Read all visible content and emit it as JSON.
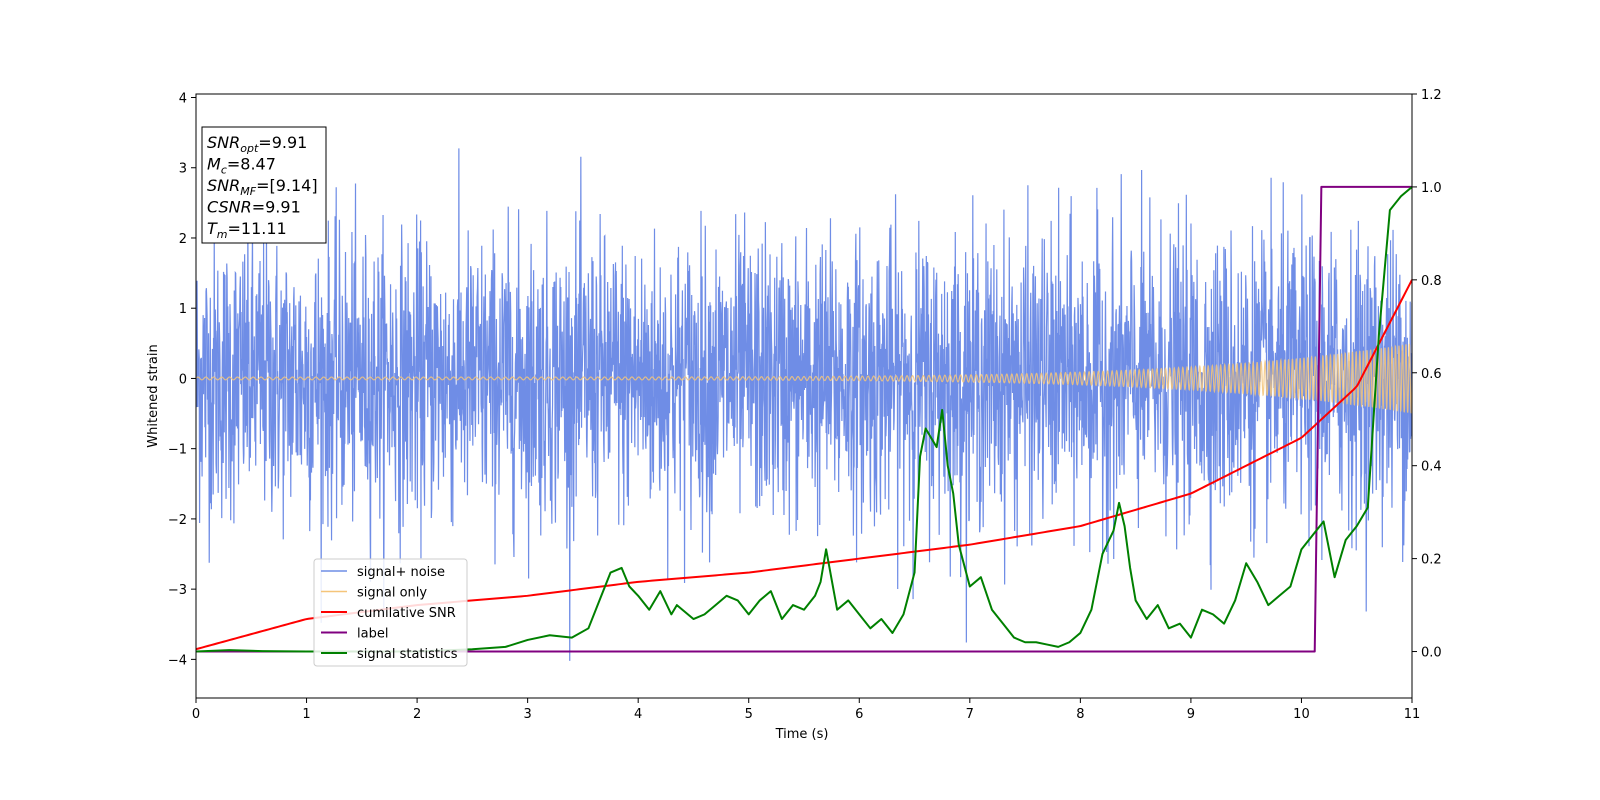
{
  "chart_data": {
    "type": "line",
    "xlabel": "Time (s)",
    "ylabel": "Whitened strain",
    "xlim": [
      0,
      11
    ],
    "ylim_left": [
      -4.55,
      4.05
    ],
    "ylim_right": [
      -0.1,
      1.2
    ],
    "x_ticks": [
      0,
      1,
      2,
      3,
      4,
      5,
      6,
      7,
      8,
      9,
      10,
      11
    ],
    "y_ticks_left": [
      4,
      3,
      2,
      1,
      0,
      -1,
      -2,
      -3,
      -4
    ],
    "y_ticks_left_labels": [
      "4",
      "3",
      "2",
      "1",
      "0",
      "−1",
      "−2",
      "−3",
      "−4"
    ],
    "y_ticks_right": [
      1.2,
      1.0,
      0.8,
      0.6,
      0.4,
      0.2,
      0.0
    ],
    "y_ticks_right_labels": [
      "1.2",
      "1.0",
      "0.8",
      "0.6",
      "0.4",
      "0.2",
      "0.0"
    ],
    "grid": false,
    "legend_position": "lower-left",
    "annotation": {
      "lines": [
        {
          "base": "SNR",
          "sub": "opt",
          "rest": "=9.91"
        },
        {
          "base": "M",
          "sub": "c",
          "rest": "=8.47"
        },
        {
          "base": "SNR",
          "sub": "MF",
          "rest": "=[9.14]"
        },
        {
          "base": "CSNR",
          "sub": "",
          "rest": "=9.91"
        },
        {
          "base": "T",
          "sub": "m",
          "rest": "=11.11"
        }
      ]
    },
    "series": [
      {
        "name": "signal+ noise",
        "color": "#6f8de6",
        "axis": "left",
        "kind": "noise_band",
        "approx_range": [
          -4.15,
          3.67
        ]
      },
      {
        "name": "signal only",
        "color": "#f5c57a",
        "axis": "left",
        "kind": "chirp",
        "amplitude_start": 0.02,
        "amplitude_end": 0.5
      },
      {
        "name": "cumilative SNR",
        "color": "#ff0000",
        "axis": "right",
        "x": [
          0,
          1,
          2,
          3,
          4,
          5,
          6,
          7,
          8,
          9,
          10,
          10.5,
          11
        ],
        "y": [
          0.005,
          0.07,
          0.1,
          0.12,
          0.15,
          0.17,
          0.2,
          0.23,
          0.27,
          0.34,
          0.46,
          0.57,
          0.8
        ]
      },
      {
        "name": "label",
        "color": "#800080",
        "axis": "right",
        "x": [
          0,
          10.12,
          10.18,
          11
        ],
        "y": [
          0.0,
          0.0,
          1.0,
          1.0
        ]
      },
      {
        "name": "signal statistics",
        "color": "#008000",
        "axis": "right",
        "x": [
          0,
          0.3,
          0.6,
          1,
          2,
          2.5,
          2.8,
          3.0,
          3.2,
          3.4,
          3.55,
          3.65,
          3.75,
          3.85,
          3.92,
          4.0,
          4.1,
          4.2,
          4.3,
          4.35,
          4.5,
          4.6,
          4.7,
          4.8,
          4.9,
          5.0,
          5.1,
          5.2,
          5.3,
          5.4,
          5.5,
          5.6,
          5.65,
          5.7,
          5.8,
          5.9,
          6.0,
          6.1,
          6.2,
          6.3,
          6.4,
          6.5,
          6.55,
          6.6,
          6.7,
          6.75,
          6.8,
          6.85,
          6.9,
          7.0,
          7.1,
          7.2,
          7.3,
          7.4,
          7.5,
          7.6,
          7.7,
          7.8,
          7.9,
          8.0,
          8.1,
          8.2,
          8.3,
          8.35,
          8.4,
          8.45,
          8.5,
          8.6,
          8.7,
          8.8,
          8.9,
          9.0,
          9.1,
          9.2,
          9.3,
          9.4,
          9.5,
          9.6,
          9.7,
          9.8,
          9.9,
          10.0,
          10.1,
          10.2,
          10.3,
          10.4,
          10.5,
          10.6,
          10.7,
          10.8,
          10.9,
          11.0
        ],
        "y": [
          0.0,
          0.003,
          0.001,
          0.0,
          0.0,
          0.005,
          0.01,
          0.025,
          0.035,
          0.03,
          0.05,
          0.11,
          0.17,
          0.18,
          0.14,
          0.12,
          0.09,
          0.13,
          0.08,
          0.1,
          0.07,
          0.08,
          0.1,
          0.12,
          0.11,
          0.08,
          0.11,
          0.13,
          0.07,
          0.1,
          0.09,
          0.12,
          0.15,
          0.22,
          0.09,
          0.11,
          0.08,
          0.05,
          0.07,
          0.04,
          0.08,
          0.17,
          0.42,
          0.48,
          0.44,
          0.52,
          0.4,
          0.34,
          0.23,
          0.14,
          0.16,
          0.09,
          0.06,
          0.03,
          0.02,
          0.02,
          0.015,
          0.01,
          0.02,
          0.04,
          0.09,
          0.21,
          0.26,
          0.32,
          0.27,
          0.18,
          0.11,
          0.07,
          0.1,
          0.05,
          0.06,
          0.03,
          0.09,
          0.08,
          0.06,
          0.11,
          0.19,
          0.15,
          0.1,
          0.12,
          0.14,
          0.22,
          0.25,
          0.28,
          0.16,
          0.24,
          0.27,
          0.31,
          0.68,
          0.95,
          0.98,
          1.0
        ]
      }
    ]
  }
}
